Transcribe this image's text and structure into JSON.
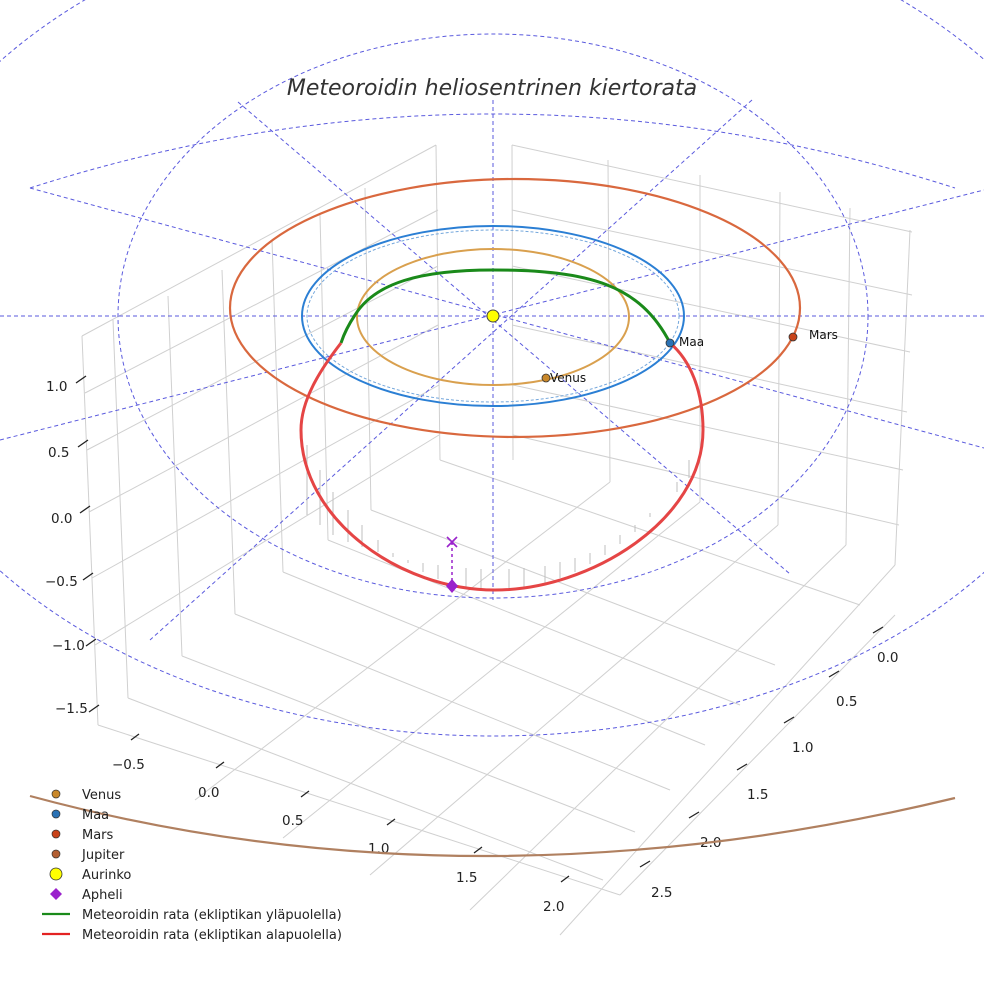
{
  "chart_data": {
    "type": "line",
    "projection": "3d",
    "title": "Meteoroidin heliosentrinen kiertorata",
    "axes": {
      "z_ticks": [
        "1.0",
        "0.5",
        "0.0",
        "−0.5",
        "−1.0",
        "−1.5"
      ],
      "x_ticks": [
        "−0.5",
        "0.0",
        "0.5",
        "1.0",
        "1.5",
        "2.0"
      ],
      "y_ticks": [
        "0.0",
        "0.5",
        "1.0",
        "1.5",
        "2.0",
        "2.5"
      ],
      "x_range": [
        -0.75,
        2.25
      ],
      "y_range": [
        -0.25,
        2.75
      ],
      "z_range": [
        -1.75,
        1.25
      ]
    },
    "bodies": [
      {
        "name": "Venus",
        "label": "Venus",
        "orbit_radius_au": 0.72,
        "color": "#d9a04e"
      },
      {
        "name": "Maa",
        "label": "Maa",
        "orbit_radius_au": 1.0,
        "color": "#2b7fd4"
      },
      {
        "name": "Mars",
        "label": "Mars",
        "orbit_radius_au": 1.52,
        "color": "#d9683e"
      },
      {
        "name": "Jupiter",
        "label": "Jupiter",
        "orbit_radius_au": 5.2,
        "color": "#b08060"
      },
      {
        "name": "Aurinko",
        "label": "Aurinko",
        "color": "#ffff00"
      }
    ],
    "meteoroid": {
      "above_ecliptic_color": "#1a8a1a",
      "below_ecliptic_color": "#e54545",
      "aphelion_color": "#9a22cc"
    },
    "legend": {
      "position": "bottom-left",
      "entries": [
        {
          "label": "Venus",
          "marker": "circle",
          "color": "#c9882a"
        },
        {
          "label": "Maa",
          "marker": "circle",
          "color": "#2a72b5"
        },
        {
          "label": "Mars",
          "marker": "circle",
          "color": "#c8431a"
        },
        {
          "label": "Jupiter",
          "marker": "circle",
          "color": "#b25e32"
        },
        {
          "label": "Aurinko",
          "marker": "circle-large",
          "color": "#ffff00"
        },
        {
          "label": "Apheli",
          "marker": "diamond",
          "color": "#9a22cc"
        },
        {
          "label": "Meteoroidin rata (ekliptikan yläpuolella)",
          "marker": "line",
          "color": "#1a8a1a"
        },
        {
          "label": "Meteoroidin rata (ekliptikan alapuolella)",
          "marker": "line",
          "color": "#e32222"
        }
      ]
    }
  }
}
